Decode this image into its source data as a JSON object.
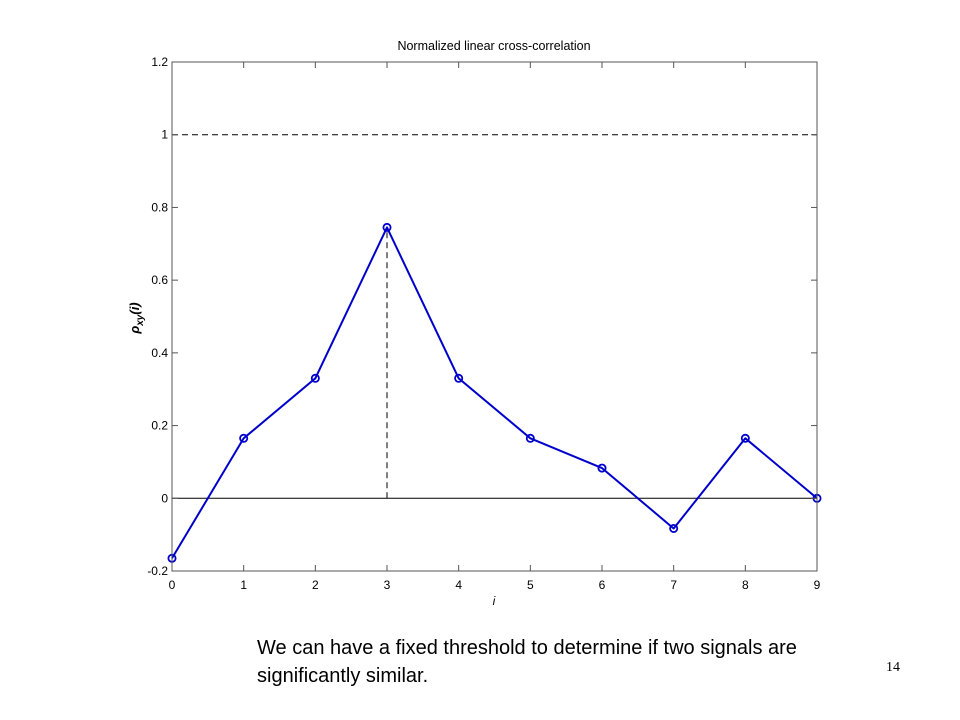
{
  "slide": {
    "caption": "We can have a fixed threshold to determine if two signals are significantly similar.",
    "page_number": "14"
  },
  "chart_data": {
    "type": "line",
    "title": "Normalized linear cross-correlation",
    "xlabel": "i",
    "ylabel": "ρxy(i)",
    "ylabel_main": "ρ",
    "ylabel_sub": "xy",
    "ylabel_tail": "(i)",
    "xlim": [
      0,
      9
    ],
    "ylim": [
      -0.2,
      1.2
    ],
    "xticks": [
      0,
      1,
      2,
      3,
      4,
      5,
      6,
      7,
      8,
      9
    ],
    "xtick_labels": [
      "0",
      "1",
      "2",
      "3",
      "4",
      "5",
      "6",
      "7",
      "8",
      "9"
    ],
    "yticks": [
      -0.2,
      0,
      0.2,
      0.4,
      0.6,
      0.8,
      1,
      1.2
    ],
    "ytick_labels": [
      "-0.2",
      "0",
      "0.2",
      "0.4",
      "0.6",
      "0.8",
      "1",
      "1.2"
    ],
    "grid": false,
    "series": [
      {
        "color": "#0000cc",
        "marker": "circle",
        "x": [
          0,
          1,
          2,
          3,
          4,
          5,
          6,
          7,
          8,
          9
        ],
        "values": [
          -0.165,
          0.165,
          0.33,
          0.745,
          0.33,
          0.165,
          0.083,
          -0.083,
          0.165,
          0.0
        ]
      }
    ],
    "reference_lines": [
      {
        "orientation": "horizontal",
        "y": 1,
        "style": "dashed",
        "color": "#000000"
      },
      {
        "orientation": "horizontal",
        "y": 0,
        "style": "solid",
        "color": "#000000"
      },
      {
        "orientation": "vertical",
        "x": 3,
        "y_from": 0,
        "y_to": 0.745,
        "style": "dashed",
        "color": "#000000"
      }
    ]
  }
}
